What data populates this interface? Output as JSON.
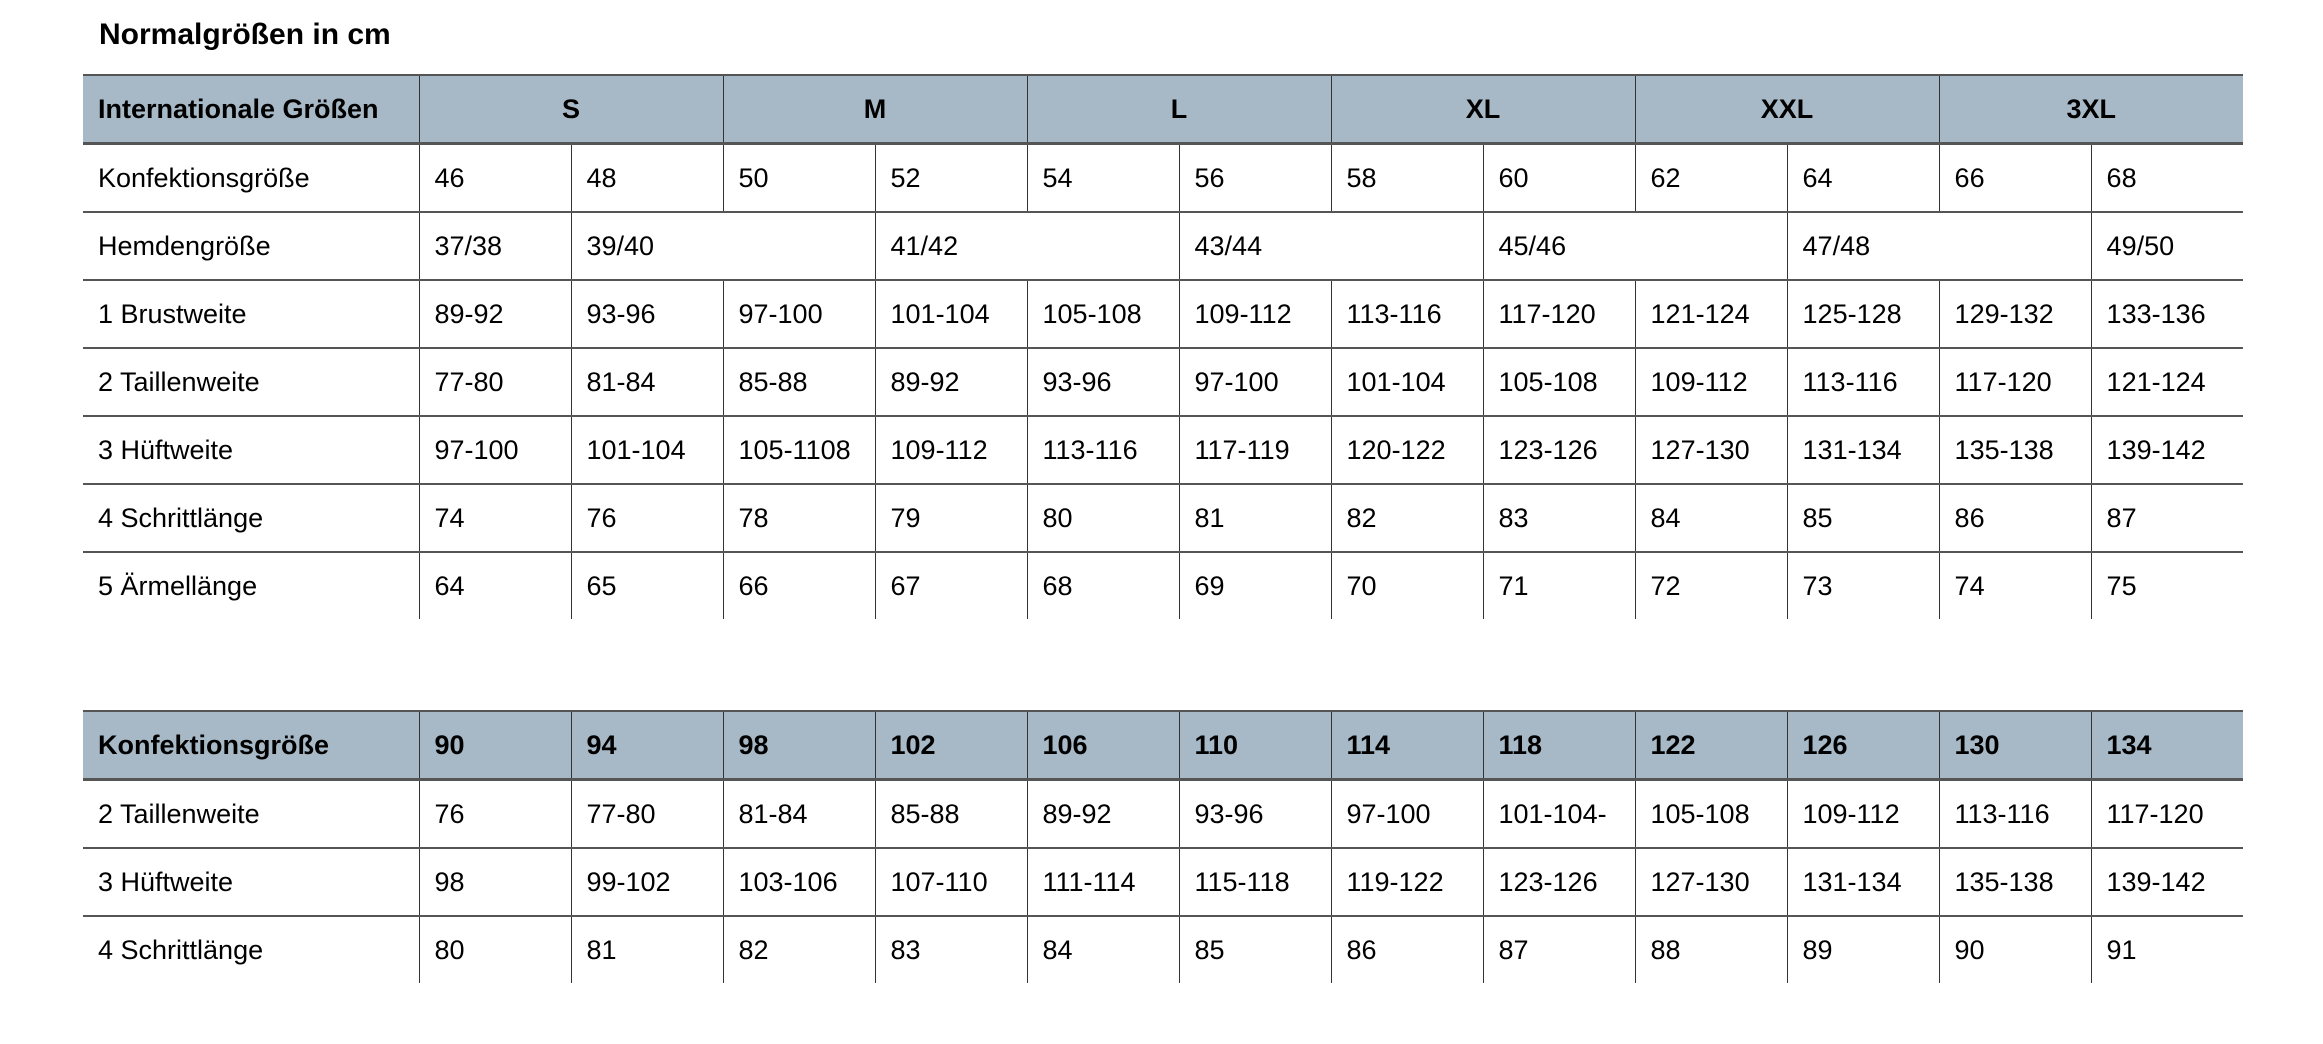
{
  "title": "Normalgrößen in cm",
  "table1": {
    "header_label": "Internationale Größen",
    "sizes": [
      "S",
      "M",
      "L",
      "XL",
      "XXL",
      "3XL"
    ],
    "rows": [
      {
        "label": "Konfektionsgröße",
        "cells": [
          {
            "v": "46",
            "span": 1
          },
          {
            "v": "48",
            "span": 1
          },
          {
            "v": "50",
            "span": 1
          },
          {
            "v": "52",
            "span": 1
          },
          {
            "v": "54",
            "span": 1
          },
          {
            "v": "56",
            "span": 1
          },
          {
            "v": "58",
            "span": 1
          },
          {
            "v": "60",
            "span": 1
          },
          {
            "v": "62",
            "span": 1
          },
          {
            "v": "64",
            "span": 1
          },
          {
            "v": "66",
            "span": 1
          },
          {
            "v": "68",
            "span": 1
          }
        ]
      },
      {
        "label": "Hemdengröße",
        "cells": [
          {
            "v": "37/38",
            "span": 1
          },
          {
            "v": "39/40",
            "span": 2
          },
          {
            "v": "41/42",
            "span": 2
          },
          {
            "v": "43/44",
            "span": 2
          },
          {
            "v": "45/46",
            "span": 2
          },
          {
            "v": "47/48",
            "span": 2
          },
          {
            "v": "49/50",
            "span": 1
          }
        ]
      },
      {
        "label": "1 Brustweite",
        "cells": [
          {
            "v": "89-92",
            "span": 1
          },
          {
            "v": "93-96",
            "span": 1
          },
          {
            "v": "97-100",
            "span": 1
          },
          {
            "v": "101-104",
            "span": 1
          },
          {
            "v": "105-108",
            "span": 1
          },
          {
            "v": "109-112",
            "span": 1
          },
          {
            "v": "113-116",
            "span": 1
          },
          {
            "v": "117-120",
            "span": 1
          },
          {
            "v": "121-124",
            "span": 1
          },
          {
            "v": "125-128",
            "span": 1
          },
          {
            "v": "129-132",
            "span": 1
          },
          {
            "v": "133-136",
            "span": 1
          }
        ]
      },
      {
        "label": "2 Taillenweite",
        "cells": [
          {
            "v": "77-80",
            "span": 1
          },
          {
            "v": "81-84",
            "span": 1
          },
          {
            "v": "85-88",
            "span": 1
          },
          {
            "v": "89-92",
            "span": 1
          },
          {
            "v": "93-96",
            "span": 1
          },
          {
            "v": "97-100",
            "span": 1
          },
          {
            "v": "101-104",
            "span": 1
          },
          {
            "v": "105-108",
            "span": 1
          },
          {
            "v": "109-112",
            "span": 1
          },
          {
            "v": "113-116",
            "span": 1
          },
          {
            "v": "117-120",
            "span": 1
          },
          {
            "v": "121-124",
            "span": 1
          }
        ]
      },
      {
        "label": "3 Hüftweite",
        "cells": [
          {
            "v": "97-100",
            "span": 1
          },
          {
            "v": "101-104",
            "span": 1
          },
          {
            "v": "105-1108",
            "span": 1
          },
          {
            "v": "109-112",
            "span": 1
          },
          {
            "v": "113-116",
            "span": 1
          },
          {
            "v": "117-119",
            "span": 1
          },
          {
            "v": "120-122",
            "span": 1
          },
          {
            "v": "123-126",
            "span": 1
          },
          {
            "v": "127-130",
            "span": 1
          },
          {
            "v": "131-134",
            "span": 1
          },
          {
            "v": "135-138",
            "span": 1
          },
          {
            "v": "139-142",
            "span": 1
          }
        ]
      },
      {
        "label": "4 Schrittlänge",
        "cells": [
          {
            "v": "74",
            "span": 1
          },
          {
            "v": "76",
            "span": 1
          },
          {
            "v": "78",
            "span": 1
          },
          {
            "v": "79",
            "span": 1
          },
          {
            "v": "80",
            "span": 1
          },
          {
            "v": "81",
            "span": 1
          },
          {
            "v": "82",
            "span": 1
          },
          {
            "v": "83",
            "span": 1
          },
          {
            "v": "84",
            "span": 1
          },
          {
            "v": "85",
            "span": 1
          },
          {
            "v": "86",
            "span": 1
          },
          {
            "v": "87",
            "span": 1
          }
        ]
      },
      {
        "label": "5 Ärmellänge",
        "cells": [
          {
            "v": "64",
            "span": 1
          },
          {
            "v": "65",
            "span": 1
          },
          {
            "v": "66",
            "span": 1
          },
          {
            "v": "67",
            "span": 1
          },
          {
            "v": "68",
            "span": 1
          },
          {
            "v": "69",
            "span": 1
          },
          {
            "v": "70",
            "span": 1
          },
          {
            "v": "71",
            "span": 1
          },
          {
            "v": "72",
            "span": 1
          },
          {
            "v": "73",
            "span": 1
          },
          {
            "v": "74",
            "span": 1
          },
          {
            "v": "75",
            "span": 1
          }
        ]
      }
    ]
  },
  "table2": {
    "header_label": "Konfektionsgröße",
    "sizes": [
      "90",
      "94",
      "98",
      "102",
      "106",
      "110",
      "114",
      "118",
      "122",
      "126",
      "130",
      "134"
    ],
    "rows": [
      {
        "label": "2 Taillenweite",
        "cells": [
          {
            "v": "76",
            "span": 1
          },
          {
            "v": "77-80",
            "span": 1
          },
          {
            "v": "81-84",
            "span": 1
          },
          {
            "v": "85-88",
            "span": 1
          },
          {
            "v": "89-92",
            "span": 1
          },
          {
            "v": "93-96",
            "span": 1
          },
          {
            "v": "97-100",
            "span": 1
          },
          {
            "v": "101-104-",
            "span": 1
          },
          {
            "v": "105-108",
            "span": 1
          },
          {
            "v": "109-112",
            "span": 1
          },
          {
            "v": "113-116",
            "span": 1
          },
          {
            "v": "117-120",
            "span": 1
          }
        ]
      },
      {
        "label": "3 Hüftweite",
        "cells": [
          {
            "v": "98",
            "span": 1
          },
          {
            "v": "99-102",
            "span": 1
          },
          {
            "v": "103-106",
            "span": 1
          },
          {
            "v": "107-110",
            "span": 1
          },
          {
            "v": "111-114",
            "span": 1
          },
          {
            "v": "115-118",
            "span": 1
          },
          {
            "v": "119-122",
            "span": 1
          },
          {
            "v": "123-126",
            "span": 1
          },
          {
            "v": "127-130",
            "span": 1
          },
          {
            "v": "131-134",
            "span": 1
          },
          {
            "v": "135-138",
            "span": 1
          },
          {
            "v": "139-142",
            "span": 1
          }
        ]
      },
      {
        "label": "4 Schrittlänge",
        "cells": [
          {
            "v": "80",
            "span": 1
          },
          {
            "v": "81",
            "span": 1
          },
          {
            "v": "82",
            "span": 1
          },
          {
            "v": "83",
            "span": 1
          },
          {
            "v": "84",
            "span": 1
          },
          {
            "v": "85",
            "span": 1
          },
          {
            "v": "86",
            "span": 1
          },
          {
            "v": "87",
            "span": 1
          },
          {
            "v": "88",
            "span": 1
          },
          {
            "v": "89",
            "span": 1
          },
          {
            "v": "90",
            "span": 1
          },
          {
            "v": "91",
            "span": 1
          }
        ]
      }
    ]
  },
  "colors": {
    "header_bg": "#a7b9c6",
    "grid": "#555555"
  }
}
